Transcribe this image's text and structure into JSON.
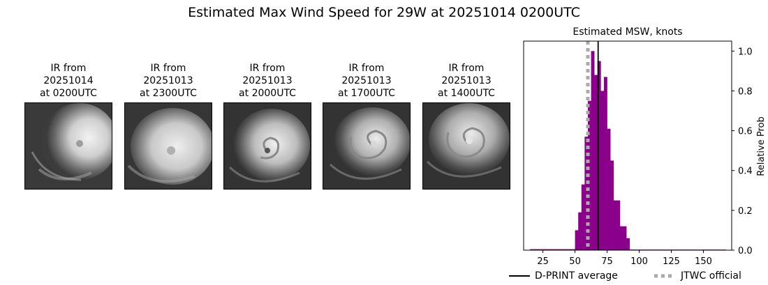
{
  "title": "Estimated Max Wind Speed for 29W at 20251014 0200UTC",
  "ir_panels": [
    {
      "line1": "IR from",
      "line2": "20251014",
      "line3": "at 0200UTC"
    },
    {
      "line1": "IR from",
      "line2": "20251013",
      "line3": "at 2300UTC"
    },
    {
      "line1": "IR from",
      "line2": "20251013",
      "line3": "at 2000UTC"
    },
    {
      "line1": "IR from",
      "line2": "20251013",
      "line3": "at 1700UTC"
    },
    {
      "line1": "IR from",
      "line2": "20251013",
      "line3": "at 1400UTC"
    }
  ],
  "chart_data": {
    "type": "bar",
    "title": "Estimated MSW, knots",
    "xlabel": "",
    "ylabel": "Relative Prob",
    "xlim": [
      10,
      172
    ],
    "ylim": [
      0,
      1.05
    ],
    "xticks": [
      25,
      50,
      75,
      100,
      125,
      150
    ],
    "yticks": [
      0.0,
      0.2,
      0.4,
      0.6,
      0.8,
      1.0
    ],
    "ytick_labels": [
      "0.0",
      "0.2",
      "0.4",
      "0.6",
      "0.8",
      "1.0"
    ],
    "y_axis_side": "right",
    "bar_color": "#8b008b",
    "bin_width": 2.5,
    "bins": [
      {
        "x": 15,
        "value": 0.005
      },
      {
        "x": 17.5,
        "value": 0.005
      },
      {
        "x": 20,
        "value": 0.005
      },
      {
        "x": 22.5,
        "value": 0.005
      },
      {
        "x": 25,
        "value": 0.005
      },
      {
        "x": 27.5,
        "value": 0.005
      },
      {
        "x": 30,
        "value": 0.005
      },
      {
        "x": 32.5,
        "value": 0.005
      },
      {
        "x": 35,
        "value": 0.005
      },
      {
        "x": 37.5,
        "value": 0.005
      },
      {
        "x": 40,
        "value": 0.005
      },
      {
        "x": 42.5,
        "value": 0.005
      },
      {
        "x": 45,
        "value": 0.005
      },
      {
        "x": 47.5,
        "value": 0.005
      },
      {
        "x": 50,
        "value": 0.1
      },
      {
        "x": 52.5,
        "value": 0.19
      },
      {
        "x": 55,
        "value": 0.33
      },
      {
        "x": 57.5,
        "value": 0.57
      },
      {
        "x": 60,
        "value": 0.75
      },
      {
        "x": 62.5,
        "value": 1.0
      },
      {
        "x": 65,
        "value": 0.88
      },
      {
        "x": 67.5,
        "value": 0.95
      },
      {
        "x": 70,
        "value": 0.8
      },
      {
        "x": 72.5,
        "value": 0.87
      },
      {
        "x": 75,
        "value": 0.61
      },
      {
        "x": 77.5,
        "value": 0.45
      },
      {
        "x": 80,
        "value": 0.25
      },
      {
        "x": 82.5,
        "value": 0.25
      },
      {
        "x": 85,
        "value": 0.12
      },
      {
        "x": 87.5,
        "value": 0.12
      },
      {
        "x": 90,
        "value": 0.06
      },
      {
        "x": 92.5,
        "value": 0.003
      },
      {
        "x": 95,
        "value": 0.003
      },
      {
        "x": 97.5,
        "value": 0.003
      },
      {
        "x": 100,
        "value": 0.003
      },
      {
        "x": 102.5,
        "value": 0.003
      },
      {
        "x": 105,
        "value": 0.003
      },
      {
        "x": 107.5,
        "value": 0.003
      },
      {
        "x": 110,
        "value": 0.003
      },
      {
        "x": 112.5,
        "value": 0.003
      },
      {
        "x": 115,
        "value": 0.003
      },
      {
        "x": 117.5,
        "value": 0.003
      },
      {
        "x": 120,
        "value": 0.003
      },
      {
        "x": 122.5,
        "value": 0.003
      },
      {
        "x": 125,
        "value": 0.003
      },
      {
        "x": 127.5,
        "value": 0.003
      },
      {
        "x": 130,
        "value": 0.003
      },
      {
        "x": 132.5,
        "value": 0.003
      },
      {
        "x": 135,
        "value": 0.003
      },
      {
        "x": 137.5,
        "value": 0.003
      },
      {
        "x": 140,
        "value": 0.003
      },
      {
        "x": 142.5,
        "value": 0.003
      },
      {
        "x": 145,
        "value": 0.003
      },
      {
        "x": 147.5,
        "value": 0.003
      },
      {
        "x": 150,
        "value": 0.003
      },
      {
        "x": 152.5,
        "value": 0.003
      },
      {
        "x": 155,
        "value": 0.003
      },
      {
        "x": 157.5,
        "value": 0.003
      },
      {
        "x": 160,
        "value": 0.003
      },
      {
        "x": 162.5,
        "value": 0.003
      },
      {
        "x": 165,
        "value": 0.003
      }
    ],
    "dprint_average": 68,
    "jtwc_official": 60,
    "legend": [
      {
        "label": "D-PRINT average",
        "style": "solid",
        "color": "#000000"
      },
      {
        "label": "JTWC official",
        "style": "dotted",
        "color": "#aaaaaa"
      }
    ]
  }
}
